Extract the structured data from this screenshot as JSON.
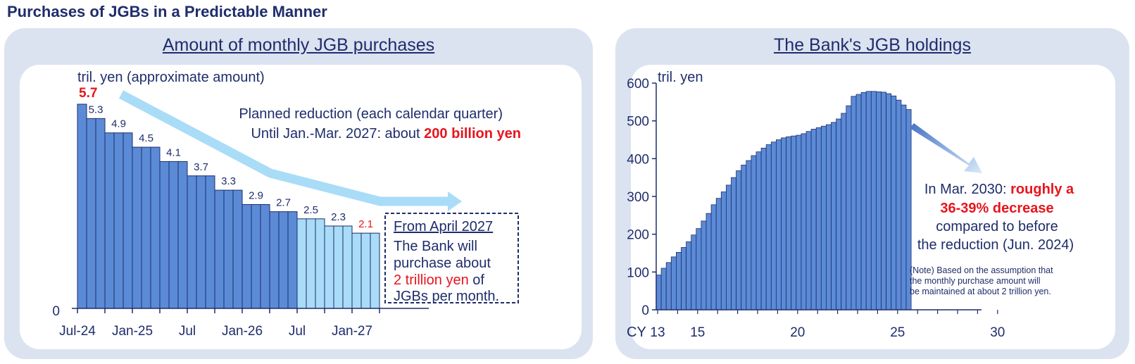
{
  "page_title": "Purchases of JGBs in a Predictable Manner",
  "colors": {
    "title": "#1f2d6b",
    "bar_dark": "#5b8bd6",
    "bar_light": "#a9dcf7",
    "bar_stroke": "#1f2d6b",
    "red": "#e8141d",
    "arrow": "#a9dcf7",
    "panel_bg": "#dbe3f1"
  },
  "left_chart": {
    "title": "Amount of monthly JGB purchases",
    "unit_label": "tril. yen (approximate amount)",
    "zero_label": "0",
    "first_value_label": "5.7",
    "annotation_line1": "Planned reduction (each calendar quarter)",
    "annotation_line2_prefix": "Until Jan.-Mar. 2027: about ",
    "annotation_line2_highlight": "200 billion yen",
    "box_title": "From April 2027",
    "box_line1": "The Bank will",
    "box_line2": "purchase about",
    "box_line3_highlight": "2 trillion yen",
    "box_line3_suffix": " of",
    "box_line4": "JGBs per month."
  },
  "right_chart": {
    "title": "The Bank's JGB holdings",
    "unit_label": "tril. yen",
    "x_prefix": "CY",
    "annot_line1_prefix": "In Mar. 2030: ",
    "annot_line1_highlight": "roughly a",
    "annot_line2_highlight": "36-39% decrease",
    "annot_line3": "compared to before",
    "annot_line4": "the reduction (Jun. 2024)",
    "note_line1": "(Note) Based on the assumption that",
    "note_line2": "the monthly purchase amount will",
    "note_line3": "be maintained at about 2 trillion yen."
  },
  "chart_data": [
    {
      "type": "bar",
      "title": "Amount of monthly JGB purchases",
      "ylabel": "tril. yen (approximate amount)",
      "ylim": [
        0,
        5.7
      ],
      "tick_labels": [
        "Jul-24",
        "Jan-25",
        "Jul",
        "Jan-26",
        "Jul",
        "Jan-27"
      ],
      "value_labels": [
        "5.3",
        "4.9",
        "4.5",
        "4.1",
        "3.7",
        "3.3",
        "2.9",
        "2.7",
        "2.5",
        "2.3",
        "2.1"
      ],
      "series": [
        {
          "values": [
            5.7,
            5.3,
            5.3,
            4.9,
            4.9,
            4.9,
            4.5,
            4.5,
            4.5,
            4.1,
            4.1,
            4.1,
            3.7,
            3.7,
            3.7,
            3.3,
            3.3,
            3.3,
            2.9,
            2.9,
            2.9,
            2.7,
            2.7,
            2.7,
            2.5,
            2.5,
            2.5,
            2.3,
            2.3,
            2.3,
            2.1,
            2.1,
            2.1
          ]
        }
      ],
      "planned_from_index": 24
    },
    {
      "type": "bar",
      "title": "The Bank's JGB holdings",
      "ylabel": "tril. yen",
      "ylim": [
        0,
        600
      ],
      "yticks": [
        0,
        100,
        200,
        300,
        400,
        500,
        600
      ],
      "x_tick_labels": [
        "13",
        "15",
        "20",
        "25",
        "30"
      ],
      "series": [
        {
          "values": [
            92,
            110,
            125,
            140,
            152,
            165,
            180,
            198,
            215,
            235,
            255,
            278,
            295,
            312,
            330,
            350,
            368,
            383,
            395,
            408,
            418,
            428,
            437,
            444,
            450,
            455,
            458,
            460,
            462,
            466,
            472,
            478,
            482,
            486,
            490,
            496,
            505,
            520,
            540,
            565,
            570,
            575,
            578,
            578,
            577,
            576,
            572,
            566,
            555,
            542,
            530
          ]
        }
      ]
    }
  ]
}
